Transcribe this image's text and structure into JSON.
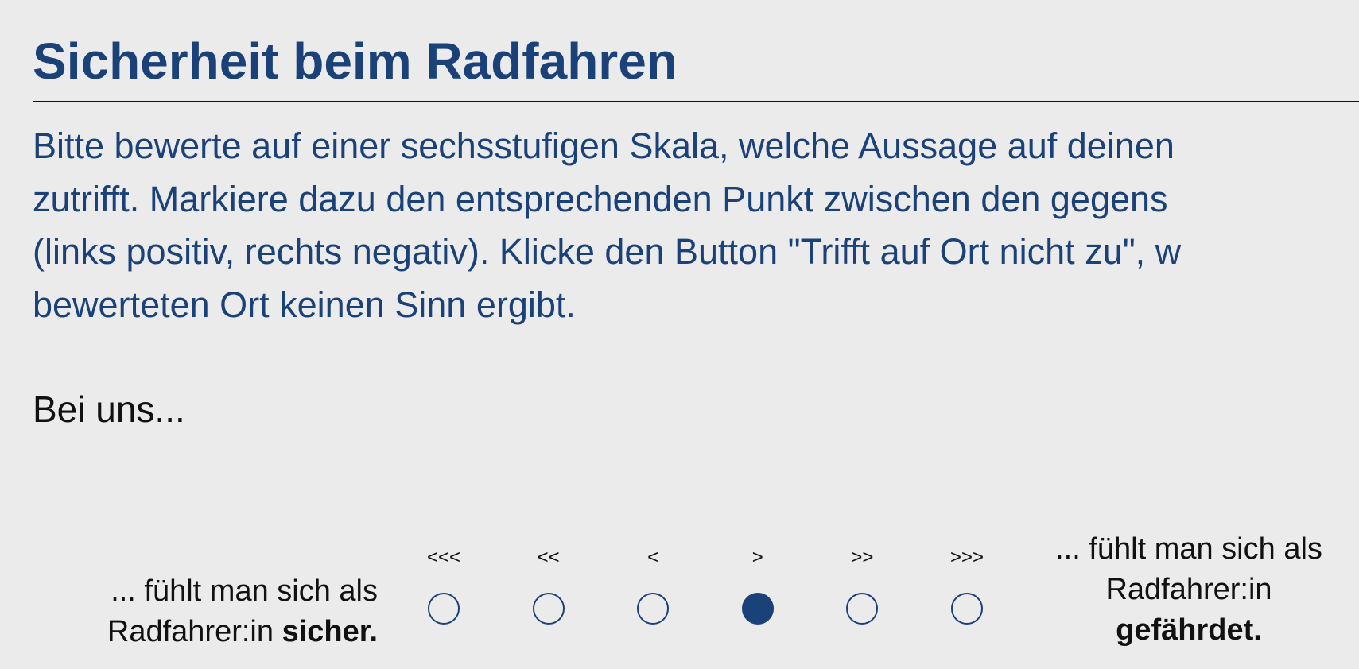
{
  "header": {
    "title": "Sicherheit beim Radfahren"
  },
  "instructions": [
    "Bitte bewerte auf einer sechsstufigen Skala, welche Aussage auf deinen",
    "zutrifft. Markiere dazu den entsprechenden Punkt zwischen den gegens",
    "(links positiv, rechts negativ). Klicke den Button \"Trifft auf Ort nicht zu\", w",
    "bewerteten Ort keinen Sinn ergibt."
  ],
  "prompt": "Bei uns...",
  "scale": {
    "left_label": {
      "line1": "... fühlt man sich als",
      "line2": "Radfahrer:in",
      "bold": "sicher."
    },
    "right_label": {
      "line1": "... fühlt man sich als",
      "line2": "Radfahrer:in",
      "bold": "gefährdet."
    },
    "options": [
      "<<<",
      "<<",
      "<",
      ">",
      ">>",
      ">>>"
    ],
    "selected": 3
  }
}
